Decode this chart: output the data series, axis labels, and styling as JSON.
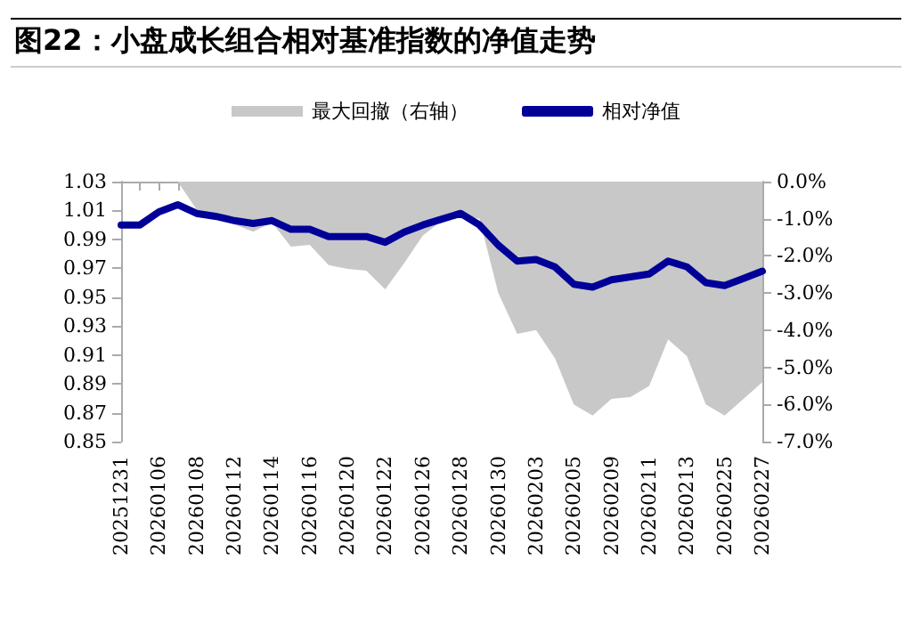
{
  "chart_data": {
    "type": "line",
    "title": "图22：小盘成长组合相对基准指数的净值走势",
    "categories": [
      "20251231",
      null,
      "20260106",
      null,
      "20260108",
      null,
      "20260112",
      null,
      "20260114",
      null,
      "20260116",
      null,
      "20260120",
      null,
      "20260122",
      null,
      "20260126",
      null,
      "20260128",
      null,
      "20260130",
      null,
      "20260203",
      null,
      "20260205",
      null,
      "20260209",
      null,
      "20260211",
      null,
      "20260213",
      null,
      "20260225",
      null,
      "20260227"
    ],
    "series": [
      {
        "name": "最大回撤（右轴）",
        "type": "area",
        "axis": "y2",
        "color": "#c8c8c8",
        "values": [
          0,
          0,
          0,
          0,
          -0.75,
          -0.9,
          -1.15,
          -1.35,
          -1.1,
          -1.75,
          -1.7,
          -2.25,
          -2.35,
          -2.4,
          -2.9,
          -2.2,
          -1.45,
          -1.05,
          -0.9,
          -1.0,
          -3.0,
          -4.1,
          -4.0,
          -4.75,
          -6.0,
          -6.3,
          -5.85,
          -5.8,
          -5.5,
          -4.25,
          -4.7,
          -6.0,
          -6.3,
          -5.85,
          -5.4
        ]
      },
      {
        "name": "相对净值",
        "color": "#000099",
        "values": [
          1.0,
          1.0,
          1.009,
          1.014,
          1.008,
          1.006,
          1.003,
          1.001,
          1.003,
          0.997,
          0.997,
          0.992,
          0.992,
          0.992,
          0.988,
          0.995,
          1.0,
          1.004,
          1.008,
          1.0,
          0.986,
          0.975,
          0.976,
          0.971,
          0.959,
          0.957,
          0.962,
          0.964,
          0.966,
          0.975,
          0.971,
          0.96,
          0.958,
          0.963,
          0.968
        ]
      }
    ],
    "ylim": [
      0.85,
      1.03
    ],
    "yticks": [
      0.85,
      0.87,
      0.89,
      0.91,
      0.93,
      0.95,
      0.97,
      0.99,
      1.01,
      1.03
    ],
    "y2lim": [
      -7,
      0
    ],
    "y2ticks": [
      {
        "value": -7,
        "label": "-7.0%"
      },
      {
        "value": -6,
        "label": "-6.0%"
      },
      {
        "value": -5,
        "label": "-5.0%"
      },
      {
        "value": -4,
        "label": "-4.0%"
      },
      {
        "value": -3,
        "label": "-3.0%"
      },
      {
        "value": -2,
        "label": "-2.0%"
      },
      {
        "value": -1,
        "label": "-1.0%"
      },
      {
        "value": 0,
        "label": "0.0%"
      }
    ],
    "grid": false,
    "legend": "top",
    "marker": "none"
  }
}
